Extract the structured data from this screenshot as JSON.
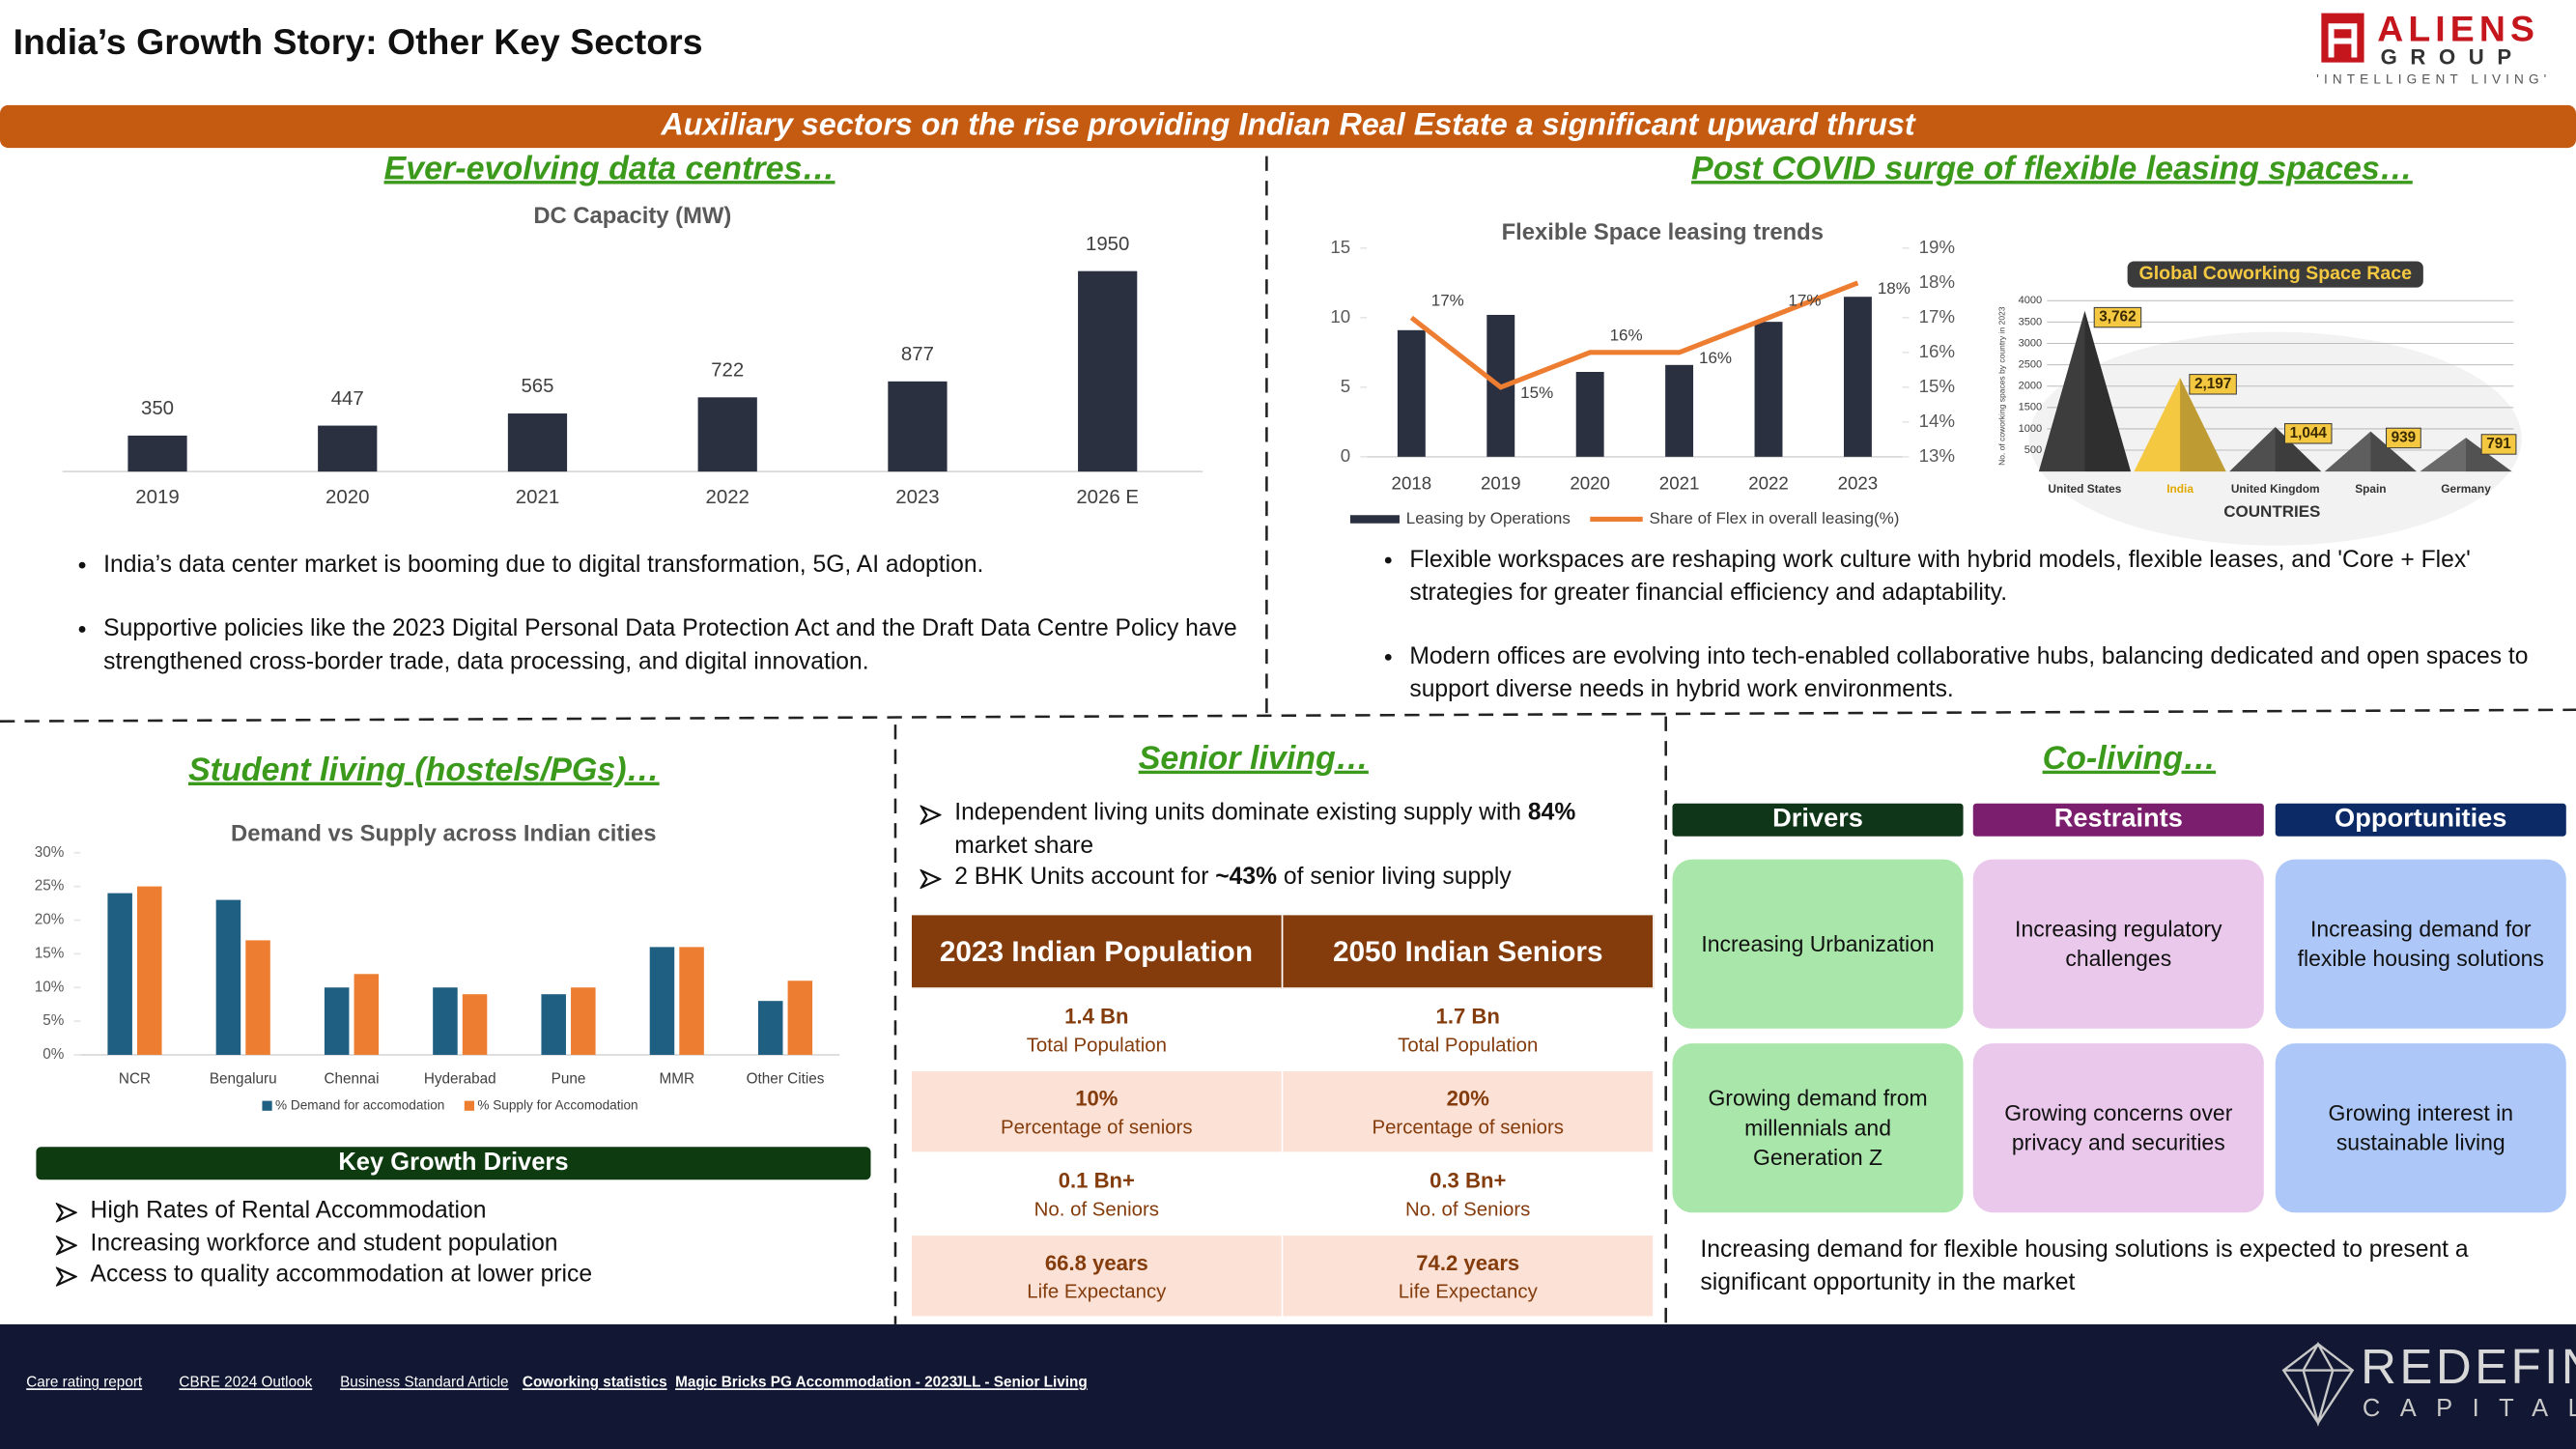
{
  "header": {
    "title": "India’s Growth Story: Other Key Sectors",
    "logo_name": "ALIENS",
    "logo_sub": "GROUP",
    "logo_tagline": "'INTELLIGENT LIVING'"
  },
  "banner": "Auxiliary sectors on the rise providing Indian Real Estate a significant upward thrust",
  "data_centres": {
    "heading": "Ever-evolving data centres…",
    "bullets": [
      "India’s data center market is booming due to digital transformation, 5G, AI adoption.",
      "Supportive policies like the 2023 Digital Personal Data Protection Act and the Draft Data Centre Policy have strengthened cross-border trade, data processing, and digital innovation."
    ]
  },
  "flex_leasing": {
    "heading": "Post COVID surge of flexible leasing spaces…",
    "bullets": [
      "Flexible workspaces are reshaping work culture with hybrid models, flexible leases, and 'Core + Flex' strategies for greater financial efficiency and adaptability.",
      "Modern offices are evolving into tech-enabled collaborative hubs, balancing dedicated and open spaces to support diverse needs in hybrid work environments."
    ]
  },
  "student_living": {
    "heading": "Student living (hostels/PGs)…",
    "drivers_title": "Key Growth Drivers",
    "drivers": [
      "High Rates of Rental Accommodation",
      "Increasing workforce and student population",
      "Access to quality accommodation at lower price"
    ]
  },
  "senior_living": {
    "heading": "Senior living…",
    "bullets": [
      [
        {
          "text": "Independent living units dominate existing supply with "
        },
        {
          "text": "84%",
          "bold": true
        },
        {
          "text": " market share"
        }
      ],
      [
        {
          "text": "2 BHK Units account for "
        },
        {
          "text": "~43%",
          "bold": true
        },
        {
          "text": " of senior living supply"
        }
      ]
    ],
    "table": {
      "headers": [
        "2023 Indian Population",
        "2050 Indian Seniors"
      ],
      "rows": [
        [
          {
            "value": "1.4 Bn",
            "label": "Total Population"
          },
          {
            "value": "1.7 Bn",
            "label": "Total Population"
          }
        ],
        [
          {
            "value": "10%",
            "label": "Percentage of seniors"
          },
          {
            "value": "20%",
            "label": "Percentage of seniors"
          }
        ],
        [
          {
            "value": "0.1 Bn+",
            "label": "No. of Seniors"
          },
          {
            "value": "0.3 Bn+",
            "label": "No. of Seniors"
          }
        ],
        [
          {
            "value": "66.8 years",
            "label": "Life Expectancy"
          },
          {
            "value": "74.2 years",
            "label": "Life Expectancy"
          }
        ]
      ]
    }
  },
  "co_living": {
    "heading": "Co-living…",
    "columns": [
      {
        "title": "Drivers",
        "items": [
          "Increasing Urbanization",
          "Growing demand from millennials and Generation Z"
        ]
      },
      {
        "title": "Restraints",
        "items": [
          "Increasing regulatory challenges",
          "Growing concerns over privacy and securities"
        ]
      },
      {
        "title": "Opportunities",
        "items": [
          "Increasing demand for flexible housing solutions",
          "Growing interest in sustainable living"
        ]
      }
    ],
    "note": "Increasing demand for flexible housing solutions is expected to present a significant opportunity in the market"
  },
  "footer": {
    "links": [
      "Care rating report",
      "CBRE 2024 Outlook",
      "Business Standard Article",
      "Coworking statistics",
      "Magic Bricks PG Accommodation - 2023",
      "JLL - Senior Living"
    ],
    "logo_name": "REDEFIN",
    "logo_sub": "CAPITAL"
  },
  "chart_data": [
    {
      "type": "bar",
      "title": "DC Capacity (MW)",
      "categories": [
        "2019",
        "2020",
        "2021",
        "2022",
        "2023",
        "2026 E"
      ],
      "values": [
        350,
        447,
        565,
        722,
        877,
        1950
      ],
      "color": "#2b3040"
    },
    {
      "type": "bar",
      "title": "Flexible Space leasing trends",
      "categories": [
        "2018",
        "2019",
        "2020",
        "2021",
        "2022",
        "2023"
      ],
      "series": [
        {
          "name": "Leasing by Operations",
          "type": "bar",
          "color": "#2b3040",
          "values": [
            9.1,
            10.2,
            6.1,
            6.6,
            9.7,
            11.5
          ]
        },
        {
          "name": "Share of Flex in overall leasing(%)",
          "type": "line",
          "axis": "y2",
          "color": "#ed7d31",
          "values": [
            17,
            15,
            16,
            16,
            17,
            18
          ],
          "value_labels": [
            "17%",
            "15%",
            "16%",
            "16%",
            "17%",
            "18%"
          ]
        }
      ],
      "ylim": [
        0,
        15
      ],
      "yticks": [
        0,
        5,
        10,
        15
      ],
      "y2lim": [
        13,
        19
      ],
      "y2ticks": [
        {
          "value": 13,
          "label": "13%"
        },
        {
          "value": 14,
          "label": "14%"
        },
        {
          "value": 15,
          "label": "15%"
        },
        {
          "value": 16,
          "label": "16%"
        },
        {
          "value": 17,
          "label": "17%"
        },
        {
          "value": 18,
          "label": "18%"
        },
        {
          "value": 19,
          "label": "19%"
        }
      ],
      "legend": "bottom"
    },
    {
      "type": "mountain",
      "title": "Global Coworking Space Race",
      "categories": [
        "United States",
        "India",
        "United Kingdom",
        "Spain",
        "Germany"
      ],
      "values": [
        3762,
        2197,
        1044,
        939,
        791
      ],
      "value_labels": [
        "3,762",
        "2,197",
        "1,044",
        "939",
        "791"
      ],
      "colors": [
        "#3d3d3d",
        "#f5c842",
        "#4f4f4f",
        "#5e5e5e",
        "#6a6a6a"
      ],
      "ylim": [
        0,
        4000
      ],
      "yticks": [
        500,
        1000,
        1500,
        2000,
        2500,
        3000,
        3500,
        4000
      ],
      "grid": true,
      "y_label": "No. of coworking spaces by country in 2023",
      "x_label": "COUNTRIES"
    },
    {
      "type": "bar",
      "title": "Demand vs Supply across Indian cities",
      "categories": [
        "NCR",
        "Bengaluru",
        "Chennai",
        "Hyderabad",
        "Pune",
        "MMR",
        "Other Cities"
      ],
      "series": [
        {
          "name": "% Demand for accomodation",
          "color": "#1f5f82",
          "values": [
            24,
            23,
            10,
            10,
            9,
            16,
            8
          ]
        },
        {
          "name": "% Supply for Accomodation",
          "color": "#ed7d31",
          "values": [
            25,
            17,
            12,
            9,
            10,
            16,
            11
          ]
        }
      ],
      "ylim": [
        0,
        30
      ],
      "yticks": [
        {
          "value": 0,
          "label": "0%"
        },
        {
          "value": 5,
          "label": "5%"
        },
        {
          "value": 10,
          "label": "10%"
        },
        {
          "value": 15,
          "label": "15%"
        },
        {
          "value": 20,
          "label": "20%"
        },
        {
          "value": 25,
          "label": "25%"
        },
        {
          "value": 30,
          "label": "30%"
        }
      ],
      "legend": "bottom"
    }
  ]
}
